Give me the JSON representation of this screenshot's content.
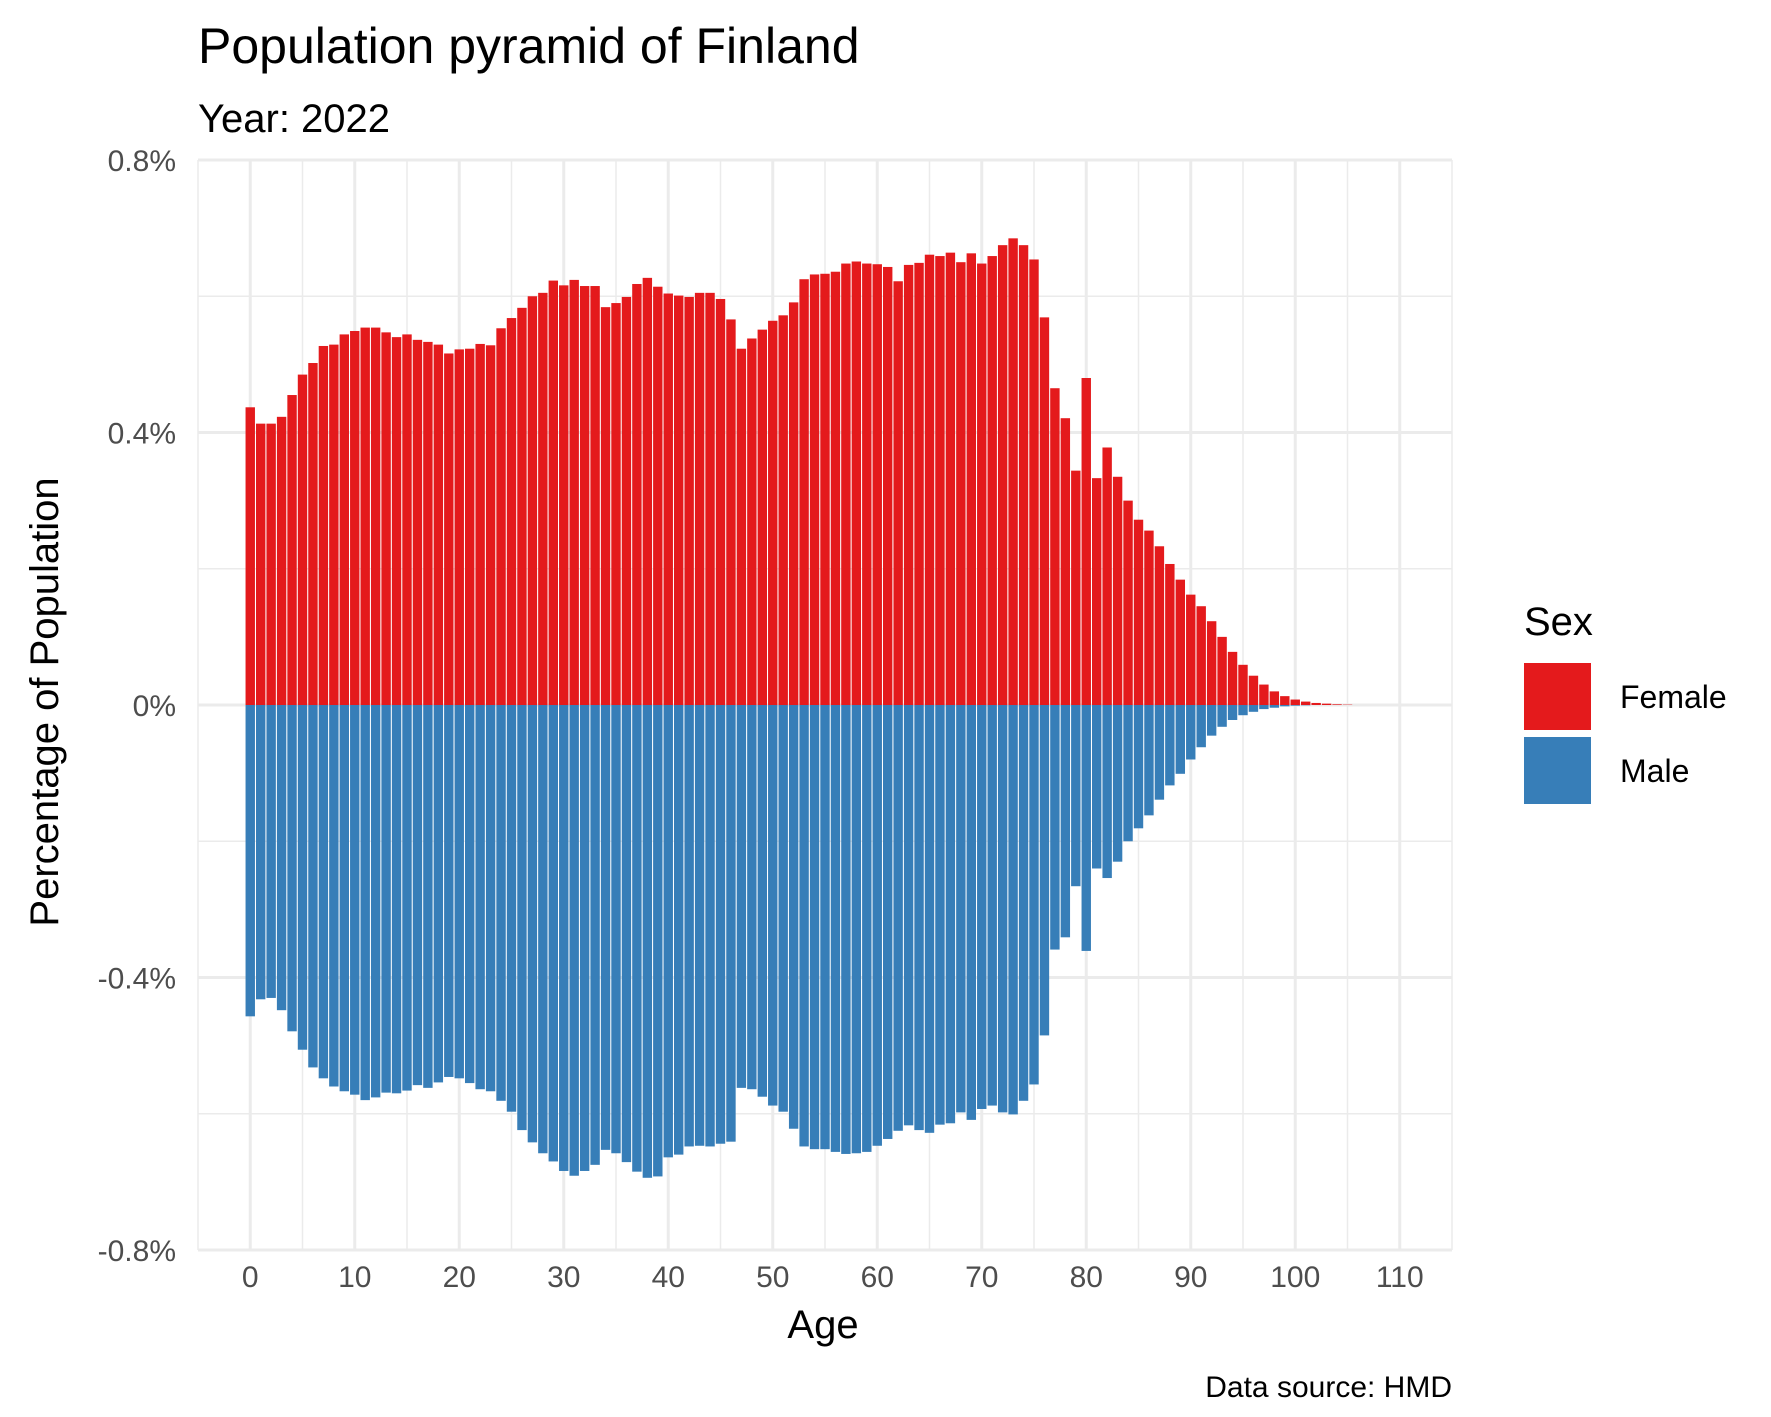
{
  "chart_data": {
    "type": "bar",
    "title": "Population pyramid of Finland",
    "subtitle": "Year: 2022",
    "xlabel": "Age",
    "ylabel": "Percentage of Population",
    "caption": "Data source: HMD",
    "xlim": [
      -5,
      115
    ],
    "ylim": [
      -0.8,
      0.8
    ],
    "x_ticks": [
      0,
      10,
      20,
      30,
      40,
      50,
      60,
      70,
      80,
      90,
      100,
      110
    ],
    "x_tick_labels": [
      "0",
      "10",
      "20",
      "30",
      "40",
      "50",
      "60",
      "70",
      "80",
      "90",
      "100",
      "110"
    ],
    "y_ticks": [
      -0.8,
      -0.4,
      0,
      0.4,
      0.8
    ],
    "y_tick_labels": [
      "-0.8%",
      "-0.4%",
      "0%",
      "0.4%",
      "0.8%"
    ],
    "grid": true,
    "legend": {
      "title": "Sex",
      "position": "right",
      "entries": [
        {
          "label": "Female",
          "color": "#E41A1C"
        },
        {
          "label": "Male",
          "color": "#377EB8"
        }
      ]
    },
    "x": [
      0,
      1,
      2,
      3,
      4,
      5,
      6,
      7,
      8,
      9,
      10,
      11,
      12,
      13,
      14,
      15,
      16,
      17,
      18,
      19,
      20,
      21,
      22,
      23,
      24,
      25,
      26,
      27,
      28,
      29,
      30,
      31,
      32,
      33,
      34,
      35,
      36,
      37,
      38,
      39,
      40,
      41,
      42,
      43,
      44,
      45,
      46,
      47,
      48,
      49,
      50,
      51,
      52,
      53,
      54,
      55,
      56,
      57,
      58,
      59,
      60,
      61,
      62,
      63,
      64,
      65,
      66,
      67,
      68,
      69,
      70,
      71,
      72,
      73,
      74,
      75,
      76,
      77,
      78,
      79,
      80,
      81,
      82,
      83,
      84,
      85,
      86,
      87,
      88,
      89,
      90,
      91,
      92,
      93,
      94,
      95,
      96,
      97,
      98,
      99,
      100,
      101,
      102,
      103,
      104,
      105,
      106,
      107,
      108,
      109,
      110
    ],
    "series": [
      {
        "name": "Female",
        "color": "#E41A1C",
        "values": [
          0.437,
          0.413,
          0.413,
          0.423,
          0.455,
          0.485,
          0.502,
          0.527,
          0.529,
          0.544,
          0.549,
          0.554,
          0.554,
          0.547,
          0.54,
          0.544,
          0.536,
          0.533,
          0.529,
          0.516,
          0.522,
          0.523,
          0.53,
          0.528,
          0.553,
          0.568,
          0.583,
          0.6,
          0.605,
          0.623,
          0.616,
          0.624,
          0.615,
          0.615,
          0.584,
          0.59,
          0.599,
          0.618,
          0.627,
          0.614,
          0.604,
          0.601,
          0.599,
          0.605,
          0.605,
          0.596,
          0.566,
          0.523,
          0.538,
          0.551,
          0.564,
          0.572,
          0.591,
          0.625,
          0.632,
          0.633,
          0.636,
          0.648,
          0.651,
          0.648,
          0.647,
          0.643,
          0.622,
          0.646,
          0.649,
          0.661,
          0.659,
          0.664,
          0.65,
          0.663,
          0.648,
          0.659,
          0.675,
          0.685,
          0.675,
          0.654,
          0.569,
          0.465,
          0.421,
          0.344,
          0.48,
          0.333,
          0.378,
          0.335,
          0.3,
          0.272,
          0.256,
          0.233,
          0.207,
          0.184,
          0.162,
          0.145,
          0.123,
          0.1,
          0.078,
          0.059,
          0.043,
          0.03,
          0.02,
          0.013,
          0.008,
          0.005,
          0.003,
          0.002,
          0.001,
          0.0005,
          0,
          0,
          0,
          0,
          0
        ]
      },
      {
        "name": "Male",
        "color": "#377EB8",
        "values": [
          -0.457,
          -0.432,
          -0.43,
          -0.448,
          -0.479,
          -0.506,
          -0.532,
          -0.548,
          -0.56,
          -0.567,
          -0.572,
          -0.58,
          -0.576,
          -0.569,
          -0.57,
          -0.566,
          -0.558,
          -0.562,
          -0.554,
          -0.546,
          -0.548,
          -0.555,
          -0.564,
          -0.567,
          -0.581,
          -0.597,
          -0.624,
          -0.642,
          -0.658,
          -0.67,
          -0.684,
          -0.691,
          -0.684,
          -0.675,
          -0.653,
          -0.658,
          -0.671,
          -0.685,
          -0.694,
          -0.692,
          -0.664,
          -0.66,
          -0.648,
          -0.647,
          -0.648,
          -0.644,
          -0.641,
          -0.562,
          -0.564,
          -0.575,
          -0.588,
          -0.597,
          -0.622,
          -0.648,
          -0.652,
          -0.652,
          -0.656,
          -0.659,
          -0.658,
          -0.656,
          -0.647,
          -0.637,
          -0.625,
          -0.617,
          -0.624,
          -0.628,
          -0.616,
          -0.614,
          -0.598,
          -0.609,
          -0.593,
          -0.588,
          -0.598,
          -0.601,
          -0.581,
          -0.557,
          -0.485,
          -0.359,
          -0.341,
          -0.266,
          -0.361,
          -0.24,
          -0.254,
          -0.23,
          -0.2,
          -0.181,
          -0.162,
          -0.139,
          -0.118,
          -0.101,
          -0.08,
          -0.062,
          -0.045,
          -0.032,
          -0.022,
          -0.015,
          -0.01,
          -0.006,
          -0.004,
          -0.002,
          -0.001,
          -0.0005,
          0,
          0,
          0,
          0,
          0,
          0,
          0,
          0,
          0
        ]
      }
    ]
  }
}
